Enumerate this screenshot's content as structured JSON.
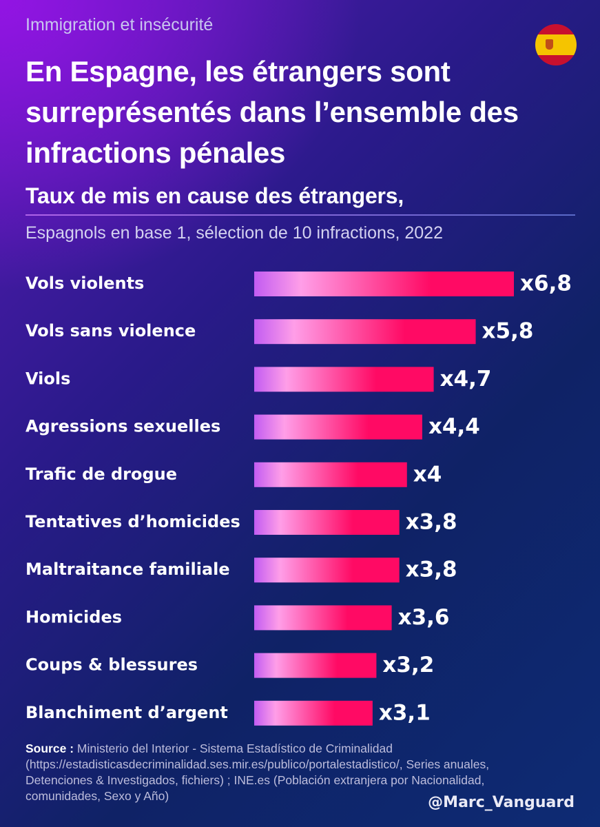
{
  "header": {
    "kicker": "Immigration et insécurité",
    "title": "En Espagne, les étrangers sont surreprésentés dans l’ensemble des infractions pénales",
    "flag_icon": "spain-flag-icon"
  },
  "chart_data": {
    "type": "bar",
    "orientation": "horizontal",
    "title": "Taux de mis en cause des étrangers,",
    "subtitle": "Espagnols en base 1, sélection de 10 infractions, 2022",
    "categories": [
      "Vols violents",
      "Vols sans violence",
      "Viols",
      "Agressions sexuelles",
      "Trafic de drogue",
      "Tentatives d’homicides",
      "Maltraitance familiale",
      "Homicides",
      "Coups & blessures",
      "Blanchiment d’argent"
    ],
    "values": [
      6.8,
      5.8,
      4.7,
      4.4,
      4.0,
      3.8,
      3.8,
      3.6,
      3.2,
      3.1
    ],
    "value_labels": [
      "x6,8",
      "x5,8",
      "x4,7",
      "x4,4",
      "x4",
      "x3,8",
      "x3,8",
      "x3,6",
      "x3,2",
      "x3,1"
    ],
    "xlim": [
      0,
      6.8
    ],
    "grid": false,
    "colors": {
      "bar_start": "#c25cf2",
      "bar_mid": "#ff9ee8",
      "bar_end": "#ff0a64"
    }
  },
  "footer": {
    "source_label": "Source :",
    "source_text": "Ministerio del Interior - Sistema Estadístico de Criminalidad (https://estadisticasdecriminalidad.ses.mir.es/publico/portalestadistico/, Series anuales, Detenciones & Investigados, fichiers) ; INE.es (Población extranjera por Nacionalidad, comunidades, Sexo y Año)",
    "handle": "@Marc_Vanguard"
  }
}
